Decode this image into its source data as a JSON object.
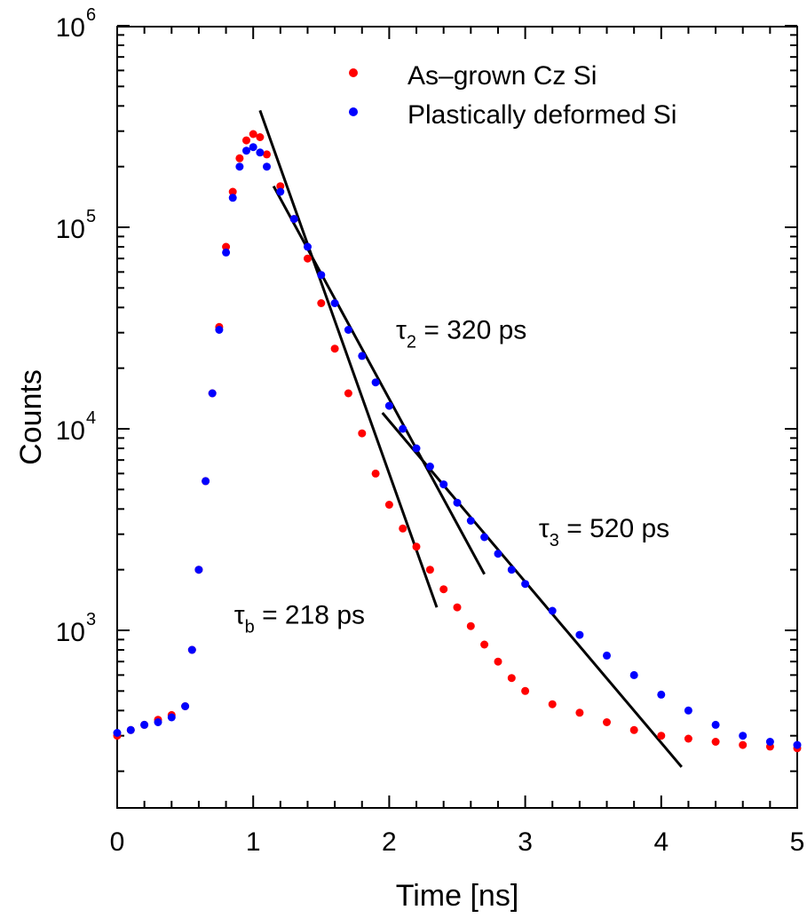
{
  "chart_data": {
    "type": "scatter",
    "title": "",
    "xlabel": "Time [ns]",
    "ylabel": "Counts",
    "xlim": [
      0,
      5
    ],
    "ylim": [
      150,
      1000000
    ],
    "yscale": "log",
    "grid": false,
    "legend_position": "top-right",
    "x_ticks": [
      0,
      1,
      2,
      3,
      4,
      5
    ],
    "x_tick_labels": [
      "0",
      "1",
      "2",
      "3",
      "4",
      "5"
    ],
    "y_ticks": [
      {
        "value": 1000,
        "base": "10",
        "exp": "3"
      },
      {
        "value": 10000,
        "base": "10",
        "exp": "4"
      },
      {
        "value": 100000,
        "base": "10",
        "exp": "5"
      },
      {
        "value": 1000000,
        "base": "10",
        "exp": "6"
      }
    ],
    "series": [
      {
        "name": "As–grown Cz Si",
        "color": "#ff0000",
        "x": [
          0.0,
          0.1,
          0.2,
          0.3,
          0.4,
          0.5,
          0.55,
          0.6,
          0.65,
          0.7,
          0.75,
          0.8,
          0.85,
          0.9,
          0.95,
          1.0,
          1.05,
          1.1,
          1.2,
          1.3,
          1.4,
          1.5,
          1.6,
          1.7,
          1.8,
          1.9,
          2.0,
          2.1,
          2.2,
          2.3,
          2.4,
          2.5,
          2.6,
          2.7,
          2.8,
          2.9,
          3.0,
          3.2,
          3.4,
          3.6,
          3.8,
          4.0,
          4.2,
          4.4,
          4.6,
          4.8,
          5.0
        ],
        "y": [
          300,
          320,
          340,
          360,
          380,
          420,
          800,
          2000,
          5500,
          15000,
          32000,
          80000,
          150000,
          220000,
          270000,
          290000,
          280000,
          230000,
          160000,
          110000,
          70000,
          42000,
          25000,
          15000,
          9500,
          6000,
          4200,
          3200,
          2600,
          2000,
          1600,
          1300,
          1050,
          850,
          700,
          580,
          500,
          430,
          390,
          350,
          320,
          300,
          290,
          280,
          270,
          265,
          260
        ]
      },
      {
        "name": "Plastically deformed  Si",
        "color": "#0000ff",
        "x": [
          0.0,
          0.1,
          0.2,
          0.3,
          0.4,
          0.5,
          0.55,
          0.6,
          0.65,
          0.7,
          0.75,
          0.8,
          0.85,
          0.9,
          0.95,
          1.0,
          1.05,
          1.1,
          1.2,
          1.3,
          1.4,
          1.5,
          1.6,
          1.7,
          1.8,
          1.9,
          2.0,
          2.1,
          2.2,
          2.3,
          2.4,
          2.5,
          2.6,
          2.7,
          2.8,
          2.9,
          3.0,
          3.2,
          3.4,
          3.6,
          3.8,
          4.0,
          4.2,
          4.4,
          4.6,
          4.8,
          5.0
        ],
        "y": [
          310,
          320,
          340,
          350,
          370,
          420,
          800,
          2000,
          5500,
          15000,
          31000,
          75000,
          140000,
          200000,
          240000,
          250000,
          235000,
          200000,
          150000,
          110000,
          80000,
          58000,
          42000,
          31000,
          23000,
          17000,
          13000,
          10000,
          8000,
          6500,
          5300,
          4300,
          3500,
          2900,
          2400,
          2000,
          1700,
          1250,
          950,
          750,
          600,
          480,
          400,
          340,
          300,
          280,
          270
        ]
      }
    ],
    "fit_lines": [
      {
        "x": [
          1.05,
          2.35
        ],
        "y": [
          380000,
          1300
        ]
      },
      {
        "x": [
          1.15,
          2.7
        ],
        "y": [
          160000,
          1900
        ]
      },
      {
        "x": [
          1.95,
          4.15
        ],
        "y": [
          12000,
          210
        ]
      }
    ],
    "annotations": [
      {
        "symbol": "τ",
        "sub": "2",
        "text": " = 320 ps",
        "x": 2.05,
        "y": 28000
      },
      {
        "symbol": "τ",
        "sub": "3",
        "text": " = 520 ps",
        "x": 3.1,
        "y": 2900
      },
      {
        "symbol": "τ",
        "sub": "b",
        "text": " = 218 ps",
        "x": 0.86,
        "y": 1080
      }
    ]
  }
}
